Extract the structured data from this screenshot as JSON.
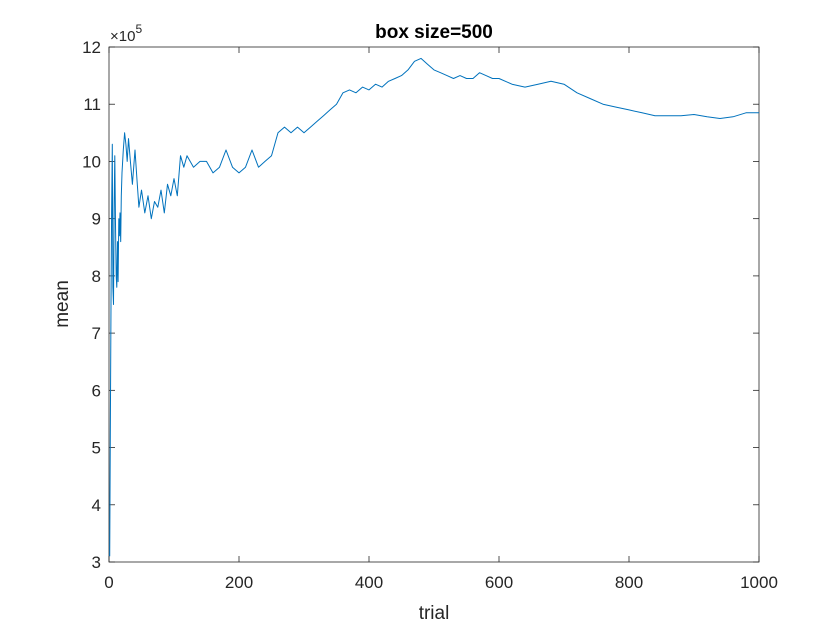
{
  "chart_data": {
    "type": "line",
    "title": "box size=500",
    "xlabel": "trial",
    "ylabel": "mean",
    "y_exponent_label": {
      "base": "×10",
      "power": "5"
    },
    "xlim": [
      0,
      1000
    ],
    "ylim": [
      3,
      12
    ],
    "y_multiplier": 100000,
    "x_ticks": [
      0,
      200,
      400,
      600,
      800,
      1000
    ],
    "x_tick_labels": [
      "0",
      "200",
      "400",
      "600",
      "800",
      "1000"
    ],
    "y_ticks": [
      3,
      4,
      5,
      6,
      7,
      8,
      9,
      10,
      11,
      12
    ],
    "y_tick_labels": [
      "3",
      "4",
      "5",
      "6",
      "7",
      "8",
      "9",
      "10",
      "11",
      "12"
    ],
    "grid": false,
    "series": [
      {
        "color": "#0072BD",
        "x": [
          1,
          2,
          3,
          4,
          5,
          6,
          7,
          8,
          9,
          10,
          11,
          12,
          13,
          14,
          15,
          16,
          17,
          18,
          19,
          20,
          22,
          24,
          26,
          28,
          30,
          33,
          36,
          40,
          43,
          46,
          50,
          55,
          60,
          65,
          70,
          75,
          80,
          85,
          90,
          95,
          100,
          105,
          110,
          115,
          120,
          130,
          140,
          150,
          160,
          170,
          180,
          190,
          200,
          210,
          220,
          230,
          240,
          250,
          260,
          270,
          280,
          290,
          300,
          310,
          320,
          330,
          340,
          350,
          360,
          370,
          380,
          390,
          400,
          410,
          420,
          430,
          440,
          450,
          460,
          470,
          480,
          490,
          500,
          510,
          520,
          530,
          540,
          550,
          560,
          570,
          580,
          590,
          600,
          620,
          640,
          660,
          680,
          700,
          720,
          740,
          760,
          780,
          800,
          820,
          840,
          860,
          880,
          900,
          920,
          940,
          960,
          980,
          1000
        ],
        "y": [
          3.1,
          5.2,
          7.5,
          9.1,
          10.3,
          7.8,
          7.5,
          9.3,
          10.1,
          8.9,
          8.0,
          7.8,
          8.6,
          7.9,
          9.0,
          8.7,
          9.1,
          8.6,
          9.4,
          9.8,
          10.2,
          10.5,
          10.3,
          10.0,
          10.4,
          10.0,
          9.6,
          10.2,
          9.7,
          9.2,
          9.5,
          9.1,
          9.4,
          9.0,
          9.3,
          9.2,
          9.5,
          9.1,
          9.6,
          9.4,
          9.7,
          9.4,
          10.1,
          9.9,
          10.1,
          9.9,
          10.0,
          10.0,
          9.8,
          9.9,
          10.2,
          9.9,
          9.8,
          9.9,
          10.2,
          9.9,
          10.0,
          10.1,
          10.5,
          10.6,
          10.5,
          10.6,
          10.5,
          10.6,
          10.7,
          10.8,
          10.9,
          11.0,
          11.2,
          11.25,
          11.2,
          11.3,
          11.25,
          11.35,
          11.3,
          11.4,
          11.45,
          11.5,
          11.6,
          11.75,
          11.8,
          11.7,
          11.6,
          11.55,
          11.5,
          11.45,
          11.5,
          11.45,
          11.45,
          11.55,
          11.5,
          11.45,
          11.45,
          11.35,
          11.3,
          11.35,
          11.4,
          11.35,
          11.2,
          11.1,
          11.0,
          10.95,
          10.9,
          10.85,
          10.8,
          10.8,
          10.8,
          10.82,
          10.78,
          10.75,
          10.78,
          10.85,
          10.85
        ]
      }
    ]
  }
}
